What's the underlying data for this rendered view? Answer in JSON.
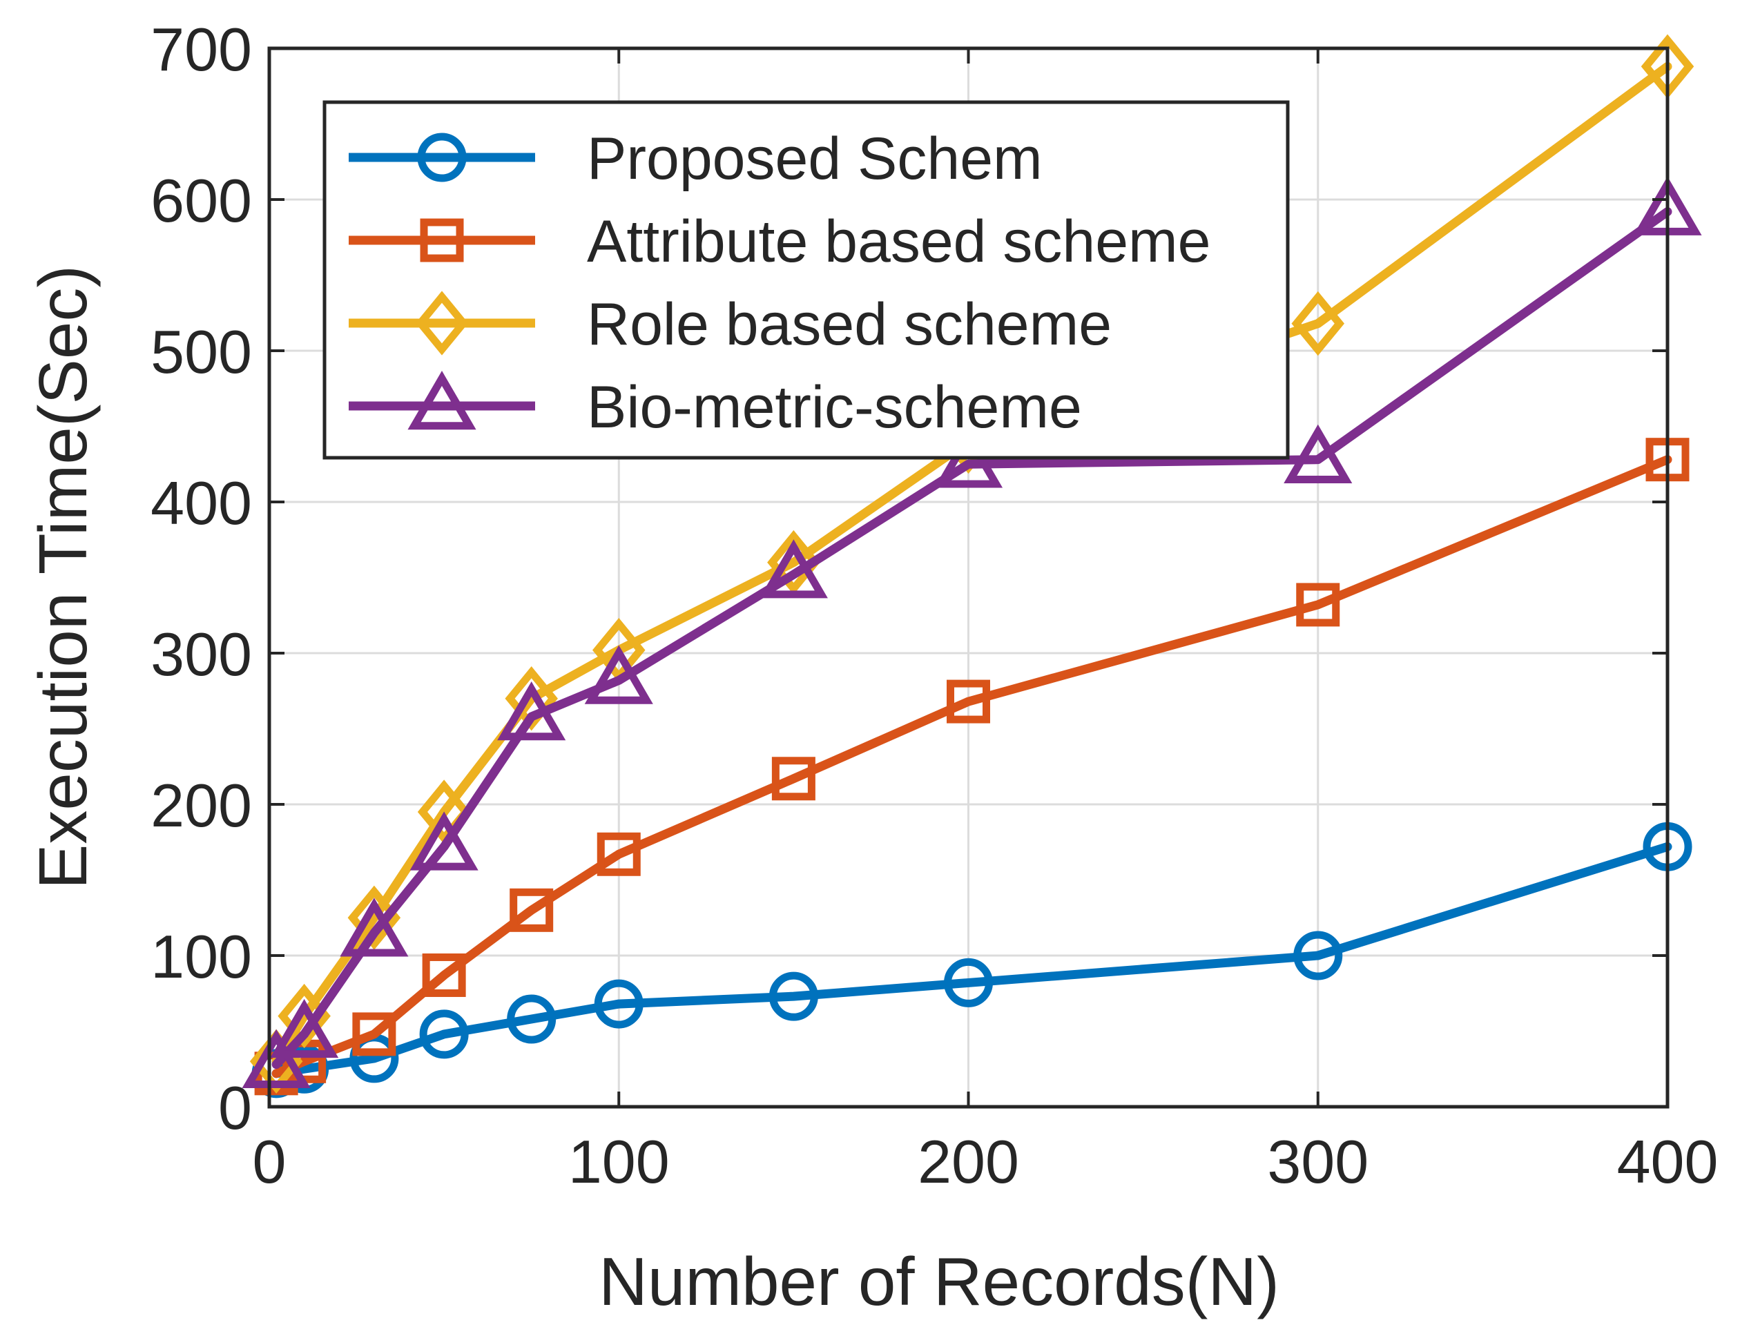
{
  "chart_data": {
    "type": "line",
    "title": "",
    "xlabel": "Number of Records(N)",
    "ylabel": "Execution Time(Sec)",
    "xlim": [
      0,
      400
    ],
    "ylim": [
      0,
      700
    ],
    "xticks": [
      0,
      100,
      200,
      300,
      400
    ],
    "yticks": [
      0,
      100,
      200,
      300,
      400,
      500,
      600,
      700
    ],
    "grid": true,
    "legend_position": "top-left",
    "series": [
      {
        "name": "Proposed Schem",
        "color": "#0072BD",
        "marker": "circle",
        "x": [
          2,
          10,
          30,
          50,
          75,
          100,
          150,
          200,
          300,
          400
        ],
        "y": [
          22,
          25,
          32,
          48,
          58,
          68,
          73,
          82,
          100,
          172
        ]
      },
      {
        "name": "Attribute based scheme",
        "color": "#D95319",
        "marker": "square",
        "x": [
          2,
          10,
          30,
          50,
          75,
          100,
          150,
          200,
          300,
          400
        ],
        "y": [
          22,
          30,
          48,
          87,
          130,
          167,
          217,
          268,
          332,
          428
        ]
      },
      {
        "name": "Role based scheme",
        "color": "#EDB120",
        "marker": "diamond",
        "x": [
          2,
          10,
          30,
          50,
          75,
          100,
          150,
          200,
          300,
          400
        ],
        "y": [
          30,
          60,
          125,
          195,
          270,
          302,
          360,
          440,
          518,
          688
        ]
      },
      {
        "name": "Bio-metric-scheme",
        "color": "#7E2F8E",
        "marker": "triangle",
        "x": [
          2,
          10,
          30,
          50,
          75,
          100,
          150,
          200,
          300,
          400
        ],
        "y": [
          28,
          48,
          115,
          172,
          258,
          282,
          352,
          425,
          428,
          592
        ]
      }
    ]
  }
}
